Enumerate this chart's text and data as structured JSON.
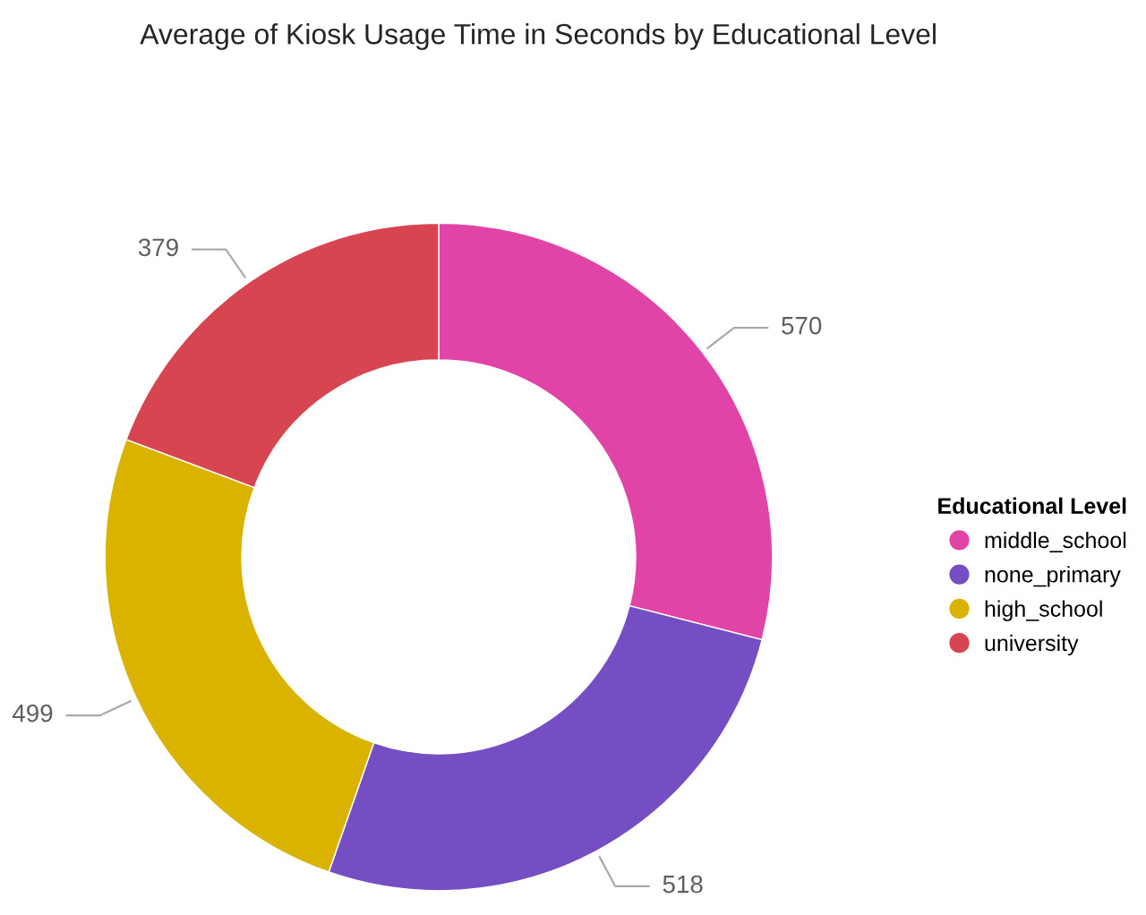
{
  "chart_data": {
    "type": "donut",
    "title": "Average of Kiosk Usage Time in Seconds by Educational Level",
    "legend_title": "Educational Level",
    "legend": "right",
    "data_labels": true,
    "categories": [
      "middle_school",
      "none_primary",
      "high_school",
      "university"
    ],
    "values": [
      570,
      518,
      499,
      379
    ],
    "colors": [
      "#e044a7",
      "#744ec2",
      "#d9b300",
      "#d64550"
    ]
  }
}
